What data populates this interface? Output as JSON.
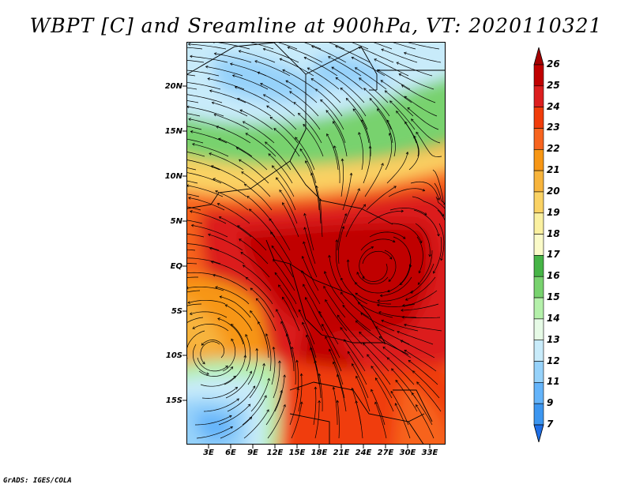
{
  "title": "WBPT [C] and Sreamline at 900hPa, VT: 2020110321",
  "credit": "GrADS: IGES/COLA",
  "map": {
    "lat_ticks": [
      "20N",
      "15N",
      "10N",
      "5N",
      "EQ",
      "5S",
      "10S",
      "15S"
    ],
    "lon_ticks": [
      "3E",
      "6E",
      "9E",
      "12E",
      "15E",
      "18E",
      "21E",
      "24E",
      "27E",
      "30E",
      "33E"
    ],
    "lon_range": [
      0,
      35
    ],
    "lat_range": [
      -19,
      24.5
    ],
    "field": "Wet-bulb potential temperature [C]",
    "overlay": "Streamlines"
  },
  "colorbar": {
    "levels": [
      "26",
      "25",
      "24",
      "23",
      "22",
      "21",
      "20",
      "19",
      "18",
      "17",
      "16",
      "15",
      "14",
      "13",
      "12",
      "11",
      "9",
      "7"
    ],
    "colors": [
      "#a50000",
      "#c00000",
      "#dc1e1e",
      "#f03c0a",
      "#f7641e",
      "#f79614",
      "#f7b43c",
      "#fad264",
      "#faf0a0",
      "#fafac8",
      "#46b446",
      "#78d26e",
      "#b4f0aa",
      "#e6fae6",
      "#c8ebfa",
      "#96d2fa",
      "#64b4fa",
      "#3c96f0",
      "#1e6ee6"
    ]
  }
}
